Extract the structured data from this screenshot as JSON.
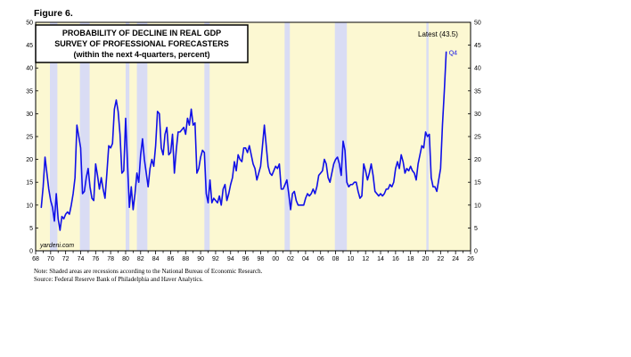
{
  "figure_label": "Figure 6.",
  "title_lines": [
    "PROBABILITY OF DECLINE IN REAL GDP",
    "SURVEY OF PROFESSIONAL FORECASTERS",
    "(within the next 4-quarters, percent)"
  ],
  "latest_label": "Latest (43.5)",
  "last_point_label": "Q4",
  "source_mark": "yardeni.com",
  "notes": [
    "Note: Shaded areas are recessions according to the National Bureau of Economic Research.",
    "Source: Federal Reserve Bank of Philadelphia and Haver Analytics."
  ],
  "colors": {
    "plot_background": "#fcf8d2",
    "recession_shade": "#d9dcf4",
    "line": "#1010e8",
    "frame": "#000000"
  },
  "chart_data": {
    "type": "line",
    "x_start_year": 1968,
    "x_end_year": 2026,
    "xlim": [
      1968,
      2026
    ],
    "ylim": [
      0,
      50
    ],
    "y_ticks": [
      0,
      5,
      10,
      15,
      20,
      25,
      30,
      35,
      40,
      45,
      50
    ],
    "x_tick_labels": [
      "68",
      "70",
      "72",
      "74",
      "76",
      "78",
      "80",
      "82",
      "84",
      "86",
      "88",
      "90",
      "92",
      "94",
      "96",
      "98",
      "00",
      "02",
      "04",
      "06",
      "08",
      "10",
      "12",
      "14",
      "16",
      "18",
      "20",
      "22",
      "24",
      "26"
    ],
    "recessions": [
      [
        1969.9,
        1970.9
      ],
      [
        1973.9,
        1975.2
      ],
      [
        1980.0,
        1980.5
      ],
      [
        1981.5,
        1982.9
      ],
      [
        1990.5,
        1991.2
      ],
      [
        2001.2,
        2001.9
      ],
      [
        2007.9,
        2009.5
      ],
      [
        2020.1,
        2020.4
      ]
    ],
    "series": [
      {
        "values": [
          [
            1968.75,
            9.5
          ],
          [
            1969.0,
            14.0
          ],
          [
            1969.25,
            20.5
          ],
          [
            1969.5,
            17.0
          ],
          [
            1969.75,
            13.5
          ],
          [
            1970.0,
            11.0
          ],
          [
            1970.25,
            9.5
          ],
          [
            1970.5,
            6.5
          ],
          [
            1970.75,
            12.5
          ],
          [
            1971.0,
            7.0
          ],
          [
            1971.25,
            4.5
          ],
          [
            1971.5,
            7.5
          ],
          [
            1971.75,
            7.0
          ],
          [
            1972.0,
            8.0
          ],
          [
            1972.25,
            8.5
          ],
          [
            1972.5,
            8.0
          ],
          [
            1972.75,
            10.0
          ],
          [
            1973.0,
            12.5
          ],
          [
            1973.25,
            16.0
          ],
          [
            1973.5,
            27.5
          ],
          [
            1973.75,
            25.0
          ],
          [
            1974.0,
            22.5
          ],
          [
            1974.25,
            12.5
          ],
          [
            1974.5,
            13.0
          ],
          [
            1974.75,
            16.0
          ],
          [
            1975.0,
            18.0
          ],
          [
            1975.25,
            14.0
          ],
          [
            1975.5,
            11.5
          ],
          [
            1975.75,
            11.0
          ],
          [
            1976.0,
            19.0
          ],
          [
            1976.25,
            16.5
          ],
          [
            1976.5,
            13.5
          ],
          [
            1976.75,
            16.0
          ],
          [
            1977.0,
            13.5
          ],
          [
            1977.25,
            11.5
          ],
          [
            1977.5,
            17.0
          ],
          [
            1977.75,
            23.0
          ],
          [
            1978.0,
            22.5
          ],
          [
            1978.25,
            23.5
          ],
          [
            1978.5,
            31.0
          ],
          [
            1978.75,
            33.0
          ],
          [
            1979.0,
            30.5
          ],
          [
            1979.25,
            25.5
          ],
          [
            1979.5,
            17.0
          ],
          [
            1979.75,
            17.5
          ],
          [
            1980.0,
            29.0
          ],
          [
            1980.25,
            19.0
          ],
          [
            1980.5,
            9.5
          ],
          [
            1980.75,
            14.0
          ],
          [
            1981.0,
            9.0
          ],
          [
            1981.25,
            12.5
          ],
          [
            1981.5,
            17.0
          ],
          [
            1981.75,
            15.0
          ],
          [
            1982.0,
            21.0
          ],
          [
            1982.25,
            24.5
          ],
          [
            1982.5,
            20.0
          ],
          [
            1982.75,
            17.0
          ],
          [
            1983.0,
            14.0
          ],
          [
            1983.25,
            18.0
          ],
          [
            1983.5,
            20.0
          ],
          [
            1983.75,
            18.5
          ],
          [
            1984.0,
            23.0
          ],
          [
            1984.25,
            30.5
          ],
          [
            1984.5,
            30.0
          ],
          [
            1984.75,
            22.5
          ],
          [
            1985.0,
            21.0
          ],
          [
            1985.25,
            25.5
          ],
          [
            1985.5,
            27.0
          ],
          [
            1985.75,
            21.0
          ],
          [
            1986.0,
            21.5
          ],
          [
            1986.25,
            25.5
          ],
          [
            1986.5,
            17.0
          ],
          [
            1986.75,
            22.0
          ],
          [
            1987.0,
            26.0
          ],
          [
            1987.25,
            26.0
          ],
          [
            1987.5,
            26.5
          ],
          [
            1987.75,
            27.0
          ],
          [
            1988.0,
            25.5
          ],
          [
            1988.25,
            29.0
          ],
          [
            1988.5,
            27.5
          ],
          [
            1988.75,
            31.0
          ],
          [
            1989.0,
            27.5
          ],
          [
            1989.25,
            28.0
          ],
          [
            1989.5,
            17.0
          ],
          [
            1989.75,
            18.0
          ],
          [
            1990.0,
            20.5
          ],
          [
            1990.25,
            22.0
          ],
          [
            1990.5,
            21.5
          ],
          [
            1990.75,
            12.5
          ],
          [
            1991.0,
            10.5
          ],
          [
            1991.25,
            15.5
          ],
          [
            1991.5,
            10.5
          ],
          [
            1991.75,
            11.5
          ],
          [
            1992.0,
            11.0
          ],
          [
            1992.25,
            10.5
          ],
          [
            1992.5,
            12.0
          ],
          [
            1992.75,
            10.0
          ],
          [
            1993.0,
            13.5
          ],
          [
            1993.25,
            14.5
          ],
          [
            1993.5,
            11.0
          ],
          [
            1993.75,
            12.5
          ],
          [
            1994.0,
            14.5
          ],
          [
            1994.25,
            16.0
          ],
          [
            1994.5,
            19.5
          ],
          [
            1994.75,
            17.5
          ],
          [
            1995.0,
            21.0
          ],
          [
            1995.25,
            20.0
          ],
          [
            1995.5,
            19.5
          ],
          [
            1995.75,
            22.5
          ],
          [
            1996.0,
            22.5
          ],
          [
            1996.25,
            21.5
          ],
          [
            1996.5,
            23.0
          ],
          [
            1996.75,
            21.0
          ],
          [
            1997.0,
            19.0
          ],
          [
            1997.25,
            18.0
          ],
          [
            1997.5,
            15.5
          ],
          [
            1997.75,
            17.0
          ],
          [
            1998.0,
            18.5
          ],
          [
            1998.25,
            23.0
          ],
          [
            1998.5,
            27.5
          ],
          [
            1998.75,
            23.0
          ],
          [
            1999.0,
            18.5
          ],
          [
            1999.25,
            17.0
          ],
          [
            1999.5,
            16.5
          ],
          [
            1999.75,
            17.5
          ],
          [
            2000.0,
            18.5
          ],
          [
            2000.25,
            18.0
          ],
          [
            2000.5,
            19.0
          ],
          [
            2000.75,
            13.5
          ],
          [
            2001.0,
            13.5
          ],
          [
            2001.25,
            14.5
          ],
          [
            2001.5,
            15.5
          ],
          [
            2001.75,
            12.5
          ],
          [
            2002.0,
            9.0
          ],
          [
            2002.25,
            12.5
          ],
          [
            2002.5,
            13.0
          ],
          [
            2002.75,
            11.0
          ],
          [
            2003.0,
            10.0
          ],
          [
            2003.25,
            10.0
          ],
          [
            2003.5,
            10.0
          ],
          [
            2003.75,
            10.0
          ],
          [
            2004.0,
            11.5
          ],
          [
            2004.25,
            12.5
          ],
          [
            2004.5,
            12.0
          ],
          [
            2004.75,
            12.5
          ],
          [
            2005.0,
            13.5
          ],
          [
            2005.25,
            12.5
          ],
          [
            2005.5,
            14.0
          ],
          [
            2005.75,
            16.5
          ],
          [
            2006.0,
            17.0
          ],
          [
            2006.25,
            17.5
          ],
          [
            2006.5,
            20.0
          ],
          [
            2006.75,
            19.0
          ],
          [
            2007.0,
            16.0
          ],
          [
            2007.25,
            15.0
          ],
          [
            2007.5,
            17.0
          ],
          [
            2007.75,
            19.0
          ],
          [
            2008.0,
            20.0
          ],
          [
            2008.25,
            20.5
          ],
          [
            2008.5,
            19.0
          ],
          [
            2008.75,
            16.5
          ],
          [
            2009.0,
            24.0
          ],
          [
            2009.25,
            22.0
          ],
          [
            2009.5,
            15.0
          ],
          [
            2009.75,
            14.0
          ],
          [
            2010.0,
            14.5
          ],
          [
            2010.25,
            14.5
          ],
          [
            2010.5,
            15.0
          ],
          [
            2010.75,
            15.0
          ],
          [
            2011.0,
            13.0
          ],
          [
            2011.25,
            11.5
          ],
          [
            2011.5,
            12.0
          ],
          [
            2011.75,
            19.0
          ],
          [
            2012.0,
            17.5
          ],
          [
            2012.25,
            15.5
          ],
          [
            2012.5,
            17.0
          ],
          [
            2012.75,
            19.0
          ],
          [
            2013.0,
            16.5
          ],
          [
            2013.25,
            13.0
          ],
          [
            2013.5,
            12.5
          ],
          [
            2013.75,
            12.0
          ],
          [
            2014.0,
            12.5
          ],
          [
            2014.25,
            12.0
          ],
          [
            2014.5,
            12.5
          ],
          [
            2014.75,
            13.5
          ],
          [
            2015.0,
            13.5
          ],
          [
            2015.25,
            14.5
          ],
          [
            2015.5,
            14.0
          ],
          [
            2015.75,
            15.0
          ],
          [
            2016.0,
            18.0
          ],
          [
            2016.25,
            19.5
          ],
          [
            2016.5,
            18.0
          ],
          [
            2016.75,
            21.0
          ],
          [
            2017.0,
            19.5
          ],
          [
            2017.25,
            17.0
          ],
          [
            2017.5,
            18.0
          ],
          [
            2017.75,
            17.5
          ],
          [
            2018.0,
            18.5
          ],
          [
            2018.25,
            17.5
          ],
          [
            2018.5,
            17.0
          ],
          [
            2018.75,
            15.5
          ],
          [
            2019.0,
            19.0
          ],
          [
            2019.25,
            21.0
          ],
          [
            2019.5,
            23.0
          ],
          [
            2019.75,
            22.5
          ],
          [
            2020.0,
            26.0
          ],
          [
            2020.25,
            25.0
          ],
          [
            2020.5,
            25.5
          ],
          [
            2020.75,
            16.0
          ],
          [
            2021.0,
            14.0
          ],
          [
            2021.25,
            14.0
          ],
          [
            2021.5,
            13.0
          ],
          [
            2021.75,
            15.5
          ],
          [
            2022.0,
            18.0
          ],
          [
            2022.25,
            27.5
          ],
          [
            2022.5,
            35.0
          ],
          [
            2022.75,
            43.5
          ]
        ]
      }
    ]
  }
}
